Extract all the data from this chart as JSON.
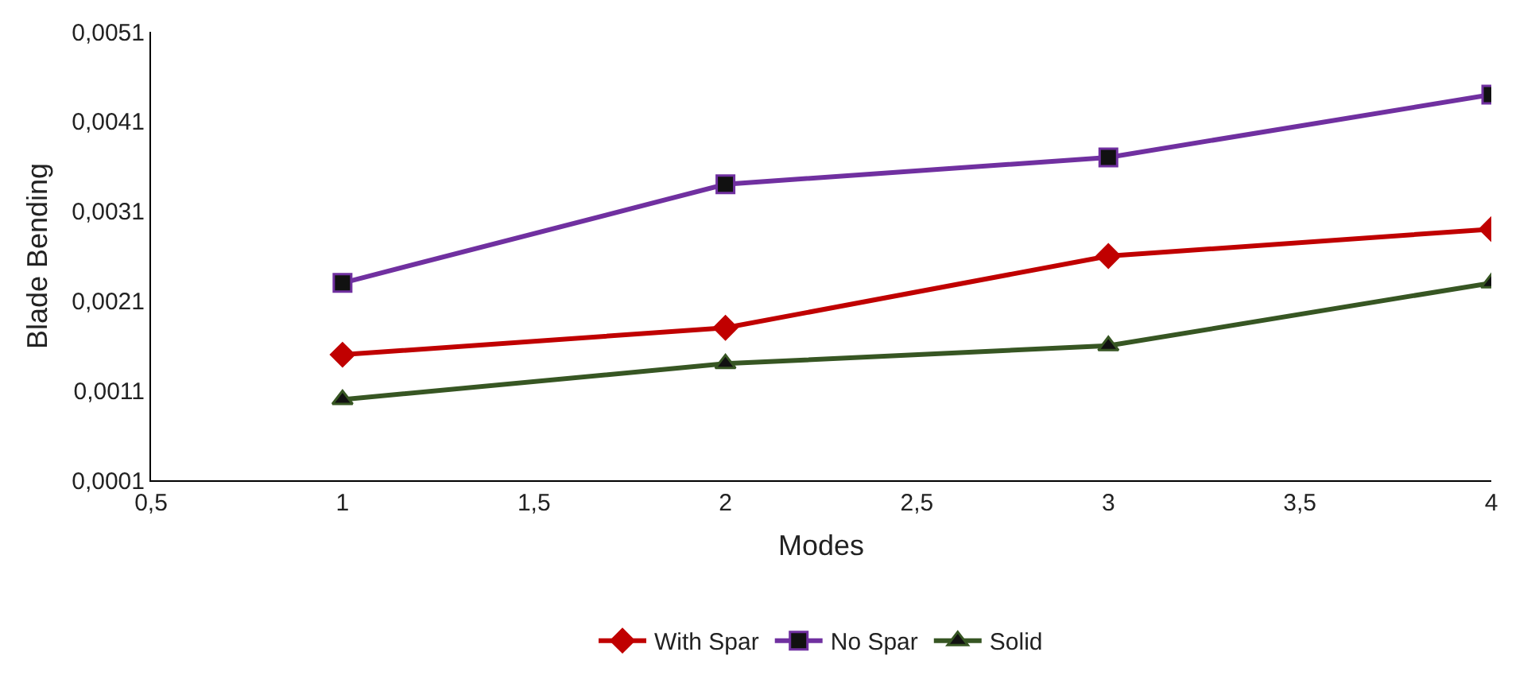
{
  "chart_data": {
    "type": "line",
    "xlabel": "Modes",
    "ylabel": "Blade Bending",
    "x": [
      1,
      2,
      3,
      4
    ],
    "series": [
      {
        "name": "With Spar",
        "color": "#c00000",
        "marker": "diamond",
        "values": [
          0.0015,
          0.0018,
          0.0026,
          0.0029
        ]
      },
      {
        "name": "No Spar",
        "color": "#7030a0",
        "marker": "square",
        "values": [
          0.0023,
          0.0034,
          0.0037,
          0.0044
        ]
      },
      {
        "name": "Solid",
        "color": "#375623",
        "marker": "triangle",
        "values": [
          0.001,
          0.0014,
          0.0016,
          0.0023
        ]
      }
    ],
    "xlim": [
      0.5,
      4
    ],
    "xticks": [
      {
        "value": 0.5,
        "label": "0,5"
      },
      1,
      {
        "value": 1.5,
        "label": "1,5"
      },
      2,
      {
        "value": 2.5,
        "label": "2,5"
      },
      3,
      {
        "value": 3.5,
        "label": "3,5"
      },
      4
    ],
    "ylim": [
      0.0001,
      0.0051
    ],
    "yticks": [
      {
        "value": 0.0001,
        "label": "0,0001"
      },
      {
        "value": 0.0011,
        "label": "0,0011"
      },
      {
        "value": 0.0021,
        "label": "0,0021"
      },
      {
        "value": 0.0031,
        "label": "0,0031"
      },
      {
        "value": 0.0041,
        "label": "0,0041"
      },
      {
        "value": 0.0051,
        "label": "0,0051"
      }
    ],
    "grid": false,
    "legend": "bottom",
    "line_style": "solid"
  }
}
